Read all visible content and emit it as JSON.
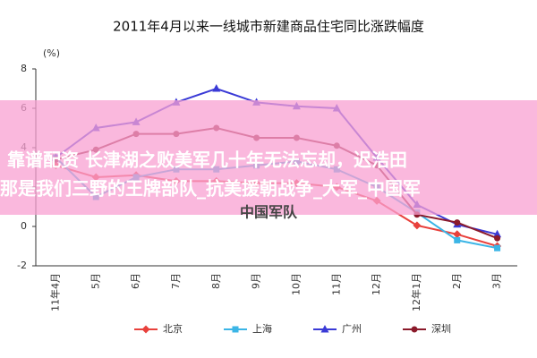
{
  "chart_data": {
    "type": "line",
    "title": "2011年4月以来一线城市新建商品住宅同比涨跌幅度",
    "y_unit": "(%)",
    "categories": [
      "11年4月",
      "5月",
      "6月",
      "7月",
      "8月",
      "9月",
      "10月",
      "11月",
      "12月",
      "12年1月",
      "2月",
      "3月"
    ],
    "ylim": [
      -2,
      8
    ],
    "yticks": [
      -2,
      0,
      2,
      4,
      6,
      8
    ],
    "legend_position": "bottom",
    "series": [
      {
        "name": "北京",
        "color": "#e8413c",
        "marker": "diamond",
        "values": [
          3.1,
          2.5,
          2.6,
          2.3,
          2.3,
          2.2,
          2.2,
          2.0,
          1.3,
          0.05,
          -0.4,
          -1.0
        ]
      },
      {
        "name": "上海",
        "color": "#3bb5e6",
        "marker": "square",
        "values": [
          3.5,
          1.5,
          2.5,
          2.9,
          2.9,
          3.1,
          3.3,
          2.9,
          2.0,
          0.7,
          -0.7,
          -1.1
        ]
      },
      {
        "name": "广州",
        "color": "#3a3ad6",
        "marker": "triangle",
        "values": [
          3.5,
          5.0,
          5.3,
          6.3,
          7.0,
          6.3,
          6.1,
          6.0,
          3.5,
          1.1,
          0.1,
          -0.4
        ]
      },
      {
        "name": "深圳",
        "color": "#8b1a2b",
        "marker": "circle",
        "values": [
          3.4,
          3.9,
          4.7,
          4.7,
          5.0,
          4.5,
          4.5,
          4.1,
          3.1,
          0.6,
          0.2,
          -0.6
        ]
      }
    ]
  },
  "overlay": {
    "lines": [
      "靠谱配资 长津湖之败美军几十年无法忘却，迟浩田",
      "那是我们三野的王牌部队_抗美援朝战争_大军_中国军",
      "中国军队"
    ]
  }
}
